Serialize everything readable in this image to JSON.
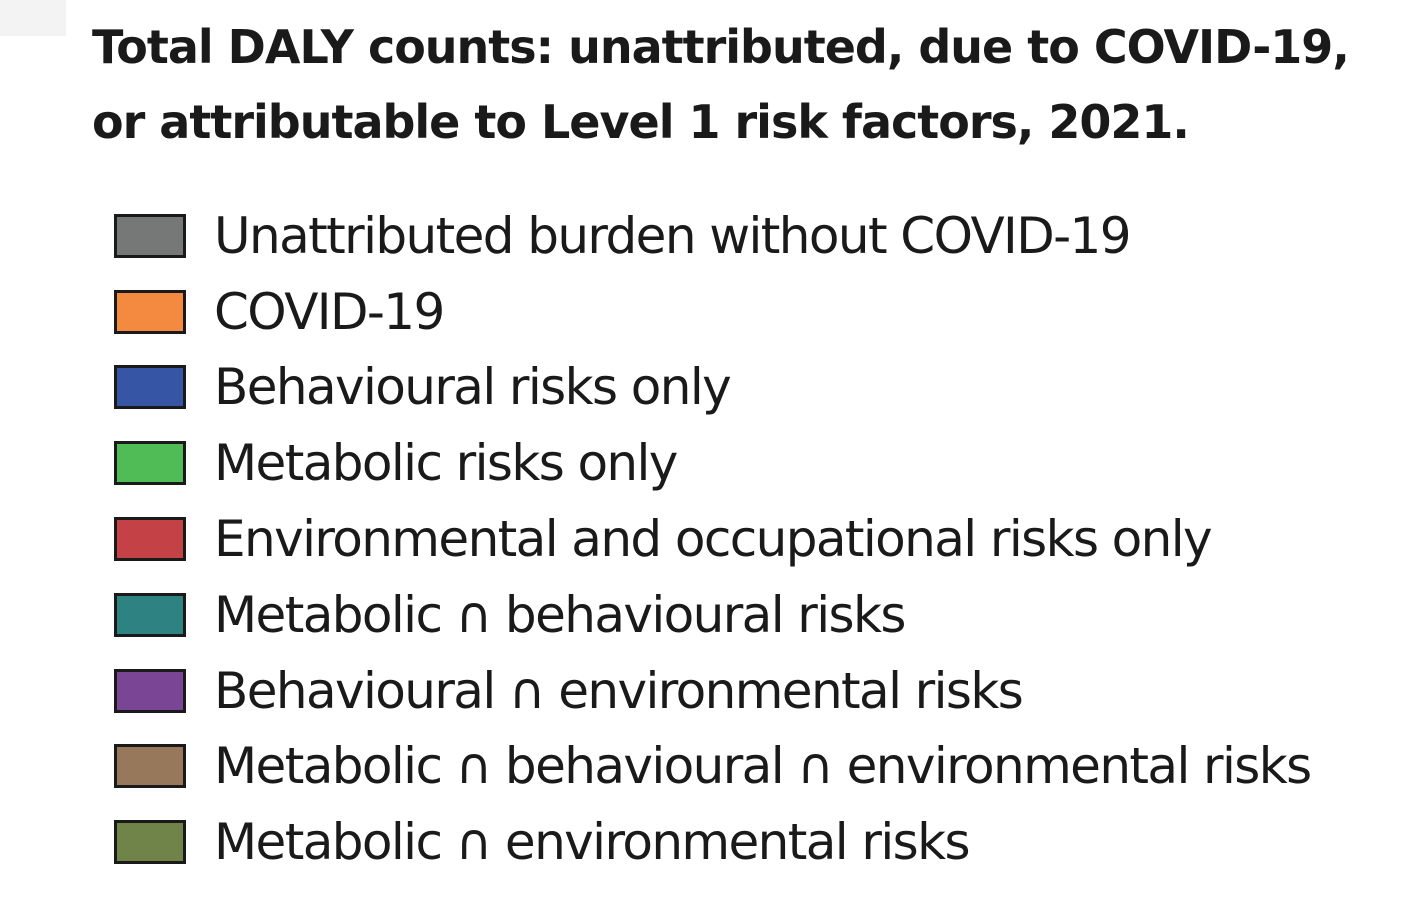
{
  "chart_data": {
    "type": "legend",
    "title_lines": [
      "Total DALY counts: unattributed, due to COVID-19,",
      "or attributable to Level 1 risk factors, 2021."
    ],
    "legend": [
      {
        "label": "Unattributed burden without COVID-19",
        "color": "#767878"
      },
      {
        "label": "COVID-19",
        "color": "#f38a40"
      },
      {
        "label": "Behavioural risks only",
        "color": "#3656a5"
      },
      {
        "label": "Metabolic risks only",
        "color": "#4fbc55"
      },
      {
        "label": "Environmental and occupational risks only",
        "color": "#c44145"
      },
      {
        "label": "Metabolic ∩ behavioural risks",
        "color": "#2f8282"
      },
      {
        "label": "Behavioural ∩ environmental risks",
        "color": "#7a4594"
      },
      {
        "label": "Metabolic ∩ behavioural ∩ environmental risks",
        "color": "#98785a"
      },
      {
        "label": "Metabolic ∩ environmental risks",
        "color": "#708449"
      }
    ]
  }
}
